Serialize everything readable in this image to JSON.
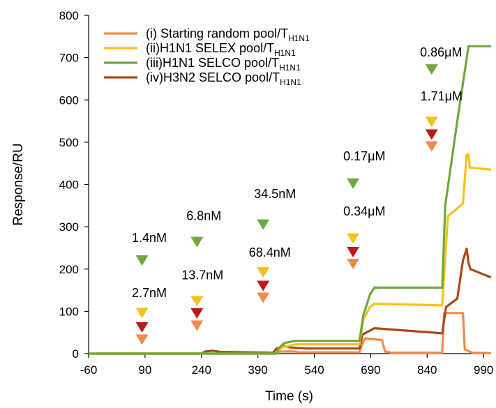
{
  "chart_data": {
    "type": "line",
    "title": "",
    "xlabel": "Time (s)",
    "ylabel": "Response/RU",
    "xlim": [
      -60,
      1010
    ],
    "ylim": [
      0,
      800
    ],
    "xticks": [
      -60,
      90,
      240,
      390,
      540,
      690,
      840,
      990
    ],
    "yticks": [
      0,
      100,
      200,
      300,
      400,
      500,
      600,
      700,
      800
    ],
    "legend_position": "top-left",
    "series": [
      {
        "name": "(i) Starting random pool/T",
        "subscript": "H1N1",
        "color": "#F08A4B",
        "points": [
          [
            -60,
            0
          ],
          [
            440,
            0
          ],
          [
            445,
            5
          ],
          [
            490,
            5
          ],
          [
            495,
            3
          ],
          [
            660,
            3
          ],
          [
            668,
            25
          ],
          [
            675,
            36
          ],
          [
            700,
            34
          ],
          [
            720,
            32
          ],
          [
            728,
            5
          ],
          [
            745,
            2
          ],
          [
            880,
            2
          ],
          [
            885,
            96
          ],
          [
            935,
            96
          ],
          [
            940,
            10
          ],
          [
            960,
            2
          ],
          [
            1010,
            1
          ]
        ]
      },
      {
        "name": "(ii)H1N1 SELEX pool/T",
        "subscript": "H1N1",
        "color": "#F5C21B",
        "points": [
          [
            -60,
            0
          ],
          [
            440,
            0
          ],
          [
            445,
            8
          ],
          [
            455,
            15
          ],
          [
            490,
            22
          ],
          [
            660,
            22
          ],
          [
            670,
            80
          ],
          [
            688,
            110
          ],
          [
            700,
            118
          ],
          [
            880,
            114
          ],
          [
            895,
            325
          ],
          [
            935,
            355
          ],
          [
            945,
            470
          ],
          [
            950,
            472
          ],
          [
            953,
            440
          ],
          [
            1010,
            435
          ]
        ]
      },
      {
        "name": "(iii)H1N1 SELCO pool/T",
        "subscript": "H1N1",
        "color": "#6FA840",
        "points": [
          [
            -60,
            0
          ],
          [
            440,
            0
          ],
          [
            445,
            12
          ],
          [
            460,
            25
          ],
          [
            490,
            30
          ],
          [
            660,
            30
          ],
          [
            670,
            90
          ],
          [
            688,
            140
          ],
          [
            700,
            156
          ],
          [
            880,
            156
          ],
          [
            888,
            350
          ],
          [
            920,
            550
          ],
          [
            950,
            727
          ],
          [
            1010,
            727
          ]
        ]
      },
      {
        "name": "(iv)H3N2 SELCO pool/T",
        "subscript": "H1N1",
        "color": "#A8491A",
        "points": [
          [
            -60,
            0
          ],
          [
            240,
            0
          ],
          [
            250,
            5
          ],
          [
            270,
            7
          ],
          [
            290,
            4
          ],
          [
            430,
            2
          ],
          [
            440,
            12
          ],
          [
            460,
            18
          ],
          [
            480,
            14
          ],
          [
            520,
            12
          ],
          [
            660,
            12
          ],
          [
            668,
            45
          ],
          [
            700,
            60
          ],
          [
            880,
            48
          ],
          [
            890,
            110
          ],
          [
            920,
            130
          ],
          [
            935,
            220
          ],
          [
            945,
            248
          ],
          [
            950,
            215
          ],
          [
            955,
            200
          ],
          [
            1010,
            180
          ]
        ]
      }
    ],
    "markers": [
      {
        "x": 82,
        "y": 220,
        "color": "#6FA840"
      },
      {
        "x": 82,
        "y": 96,
        "color": "#F5C21B"
      },
      {
        "x": 82,
        "y": 62,
        "color": "#C0161B"
      },
      {
        "x": 82,
        "y": 33,
        "color": "#F08A4B"
      },
      {
        "x": 228,
        "y": 264,
        "color": "#6FA840"
      },
      {
        "x": 228,
        "y": 124,
        "color": "#F5C21B"
      },
      {
        "x": 228,
        "y": 95,
        "color": "#C0161B"
      },
      {
        "x": 228,
        "y": 66,
        "color": "#F08A4B"
      },
      {
        "x": 404,
        "y": 305,
        "color": "#6FA840"
      },
      {
        "x": 404,
        "y": 192,
        "color": "#F5C21B"
      },
      {
        "x": 404,
        "y": 160,
        "color": "#C0161B"
      },
      {
        "x": 404,
        "y": 132,
        "color": "#F08A4B"
      },
      {
        "x": 643,
        "y": 402,
        "color": "#6FA840"
      },
      {
        "x": 643,
        "y": 272,
        "color": "#F5C21B"
      },
      {
        "x": 643,
        "y": 240,
        "color": "#C0161B"
      },
      {
        "x": 643,
        "y": 212,
        "color": "#F08A4B"
      },
      {
        "x": 852,
        "y": 672,
        "color": "#6FA840"
      },
      {
        "x": 852,
        "y": 548,
        "color": "#F5C21B"
      },
      {
        "x": 852,
        "y": 518,
        "color": "#C0161B"
      },
      {
        "x": 852,
        "y": 490,
        "color": "#F08A4B"
      }
    ],
    "annotations": [
      {
        "text": "1.4nM",
        "x": 55,
        "y": 264
      },
      {
        "text": "2.7nM",
        "x": 55,
        "y": 134
      },
      {
        "text": "6.8nM",
        "x": 200,
        "y": 316
      },
      {
        "text": "13.7nM",
        "x": 187,
        "y": 176
      },
      {
        "text": "34.5nM",
        "x": 380,
        "y": 368
      },
      {
        "text": "68.4nM",
        "x": 366,
        "y": 229
      },
      {
        "text": "0.17μM",
        "x": 617,
        "y": 457
      },
      {
        "text": "0.34μM",
        "x": 617,
        "y": 327
      },
      {
        "text": "0.86μM",
        "x": 821,
        "y": 703
      },
      {
        "text": "1.71μM",
        "x": 822,
        "y": 599
      }
    ]
  }
}
